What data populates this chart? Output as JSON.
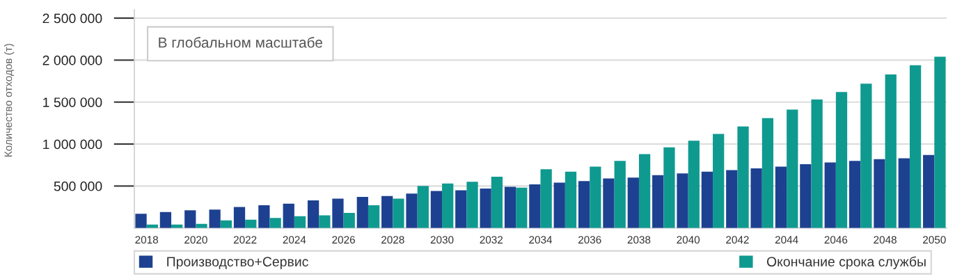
{
  "chart_data": {
    "type": "bar",
    "title": "В глобальном масштабе",
    "ylabel": "Количество отходов (т)",
    "x": [
      2018,
      2019,
      2020,
      2021,
      2022,
      2023,
      2024,
      2025,
      2026,
      2027,
      2028,
      2029,
      2030,
      2031,
      2032,
      2033,
      2034,
      2035,
      2036,
      2037,
      2038,
      2039,
      2040,
      2041,
      2042,
      2043,
      2044,
      2045,
      2046,
      2047,
      2048,
      2049,
      2050
    ],
    "series": [
      {
        "name": "Производство+Сервис",
        "color": "#1d4190",
        "values": [
          170000,
          190000,
          210000,
          220000,
          250000,
          270000,
          290000,
          330000,
          350000,
          370000,
          380000,
          410000,
          440000,
          450000,
          470000,
          490000,
          520000,
          540000,
          560000,
          590000,
          600000,
          630000,
          650000,
          670000,
          690000,
          710000,
          730000,
          760000,
          780000,
          800000,
          820000,
          830000,
          870000
        ]
      },
      {
        "name": "Окончание срока службы",
        "color": "#0f9a90",
        "values": [
          40000,
          40000,
          50000,
          90000,
          100000,
          120000,
          140000,
          150000,
          180000,
          270000,
          350000,
          500000,
          530000,
          550000,
          610000,
          480000,
          700000,
          670000,
          730000,
          800000,
          880000,
          960000,
          1040000,
          1120000,
          1210000,
          1310000,
          1410000,
          1530000,
          1620000,
          1720000,
          1830000,
          1940000,
          2040000
        ]
      }
    ],
    "xlim": [
      2017.5,
      2050.5
    ],
    "xticks": [
      2018,
      2020,
      2022,
      2024,
      2026,
      2028,
      2030,
      2032,
      2034,
      2036,
      2038,
      2040,
      2042,
      2044,
      2046,
      2048,
      2050
    ],
    "ylim": [
      0,
      2600000
    ],
    "yticks": [
      {
        "value": 500000,
        "label": "500 000"
      },
      {
        "value": 1000000,
        "label": "1 000 000"
      },
      {
        "value": 1500000,
        "label": "1 500 000"
      },
      {
        "value": 2000000,
        "label": "2 000 000"
      },
      {
        "value": 2500000,
        "label": "2 500 000"
      }
    ],
    "grid": "y",
    "legend": "bottom"
  }
}
